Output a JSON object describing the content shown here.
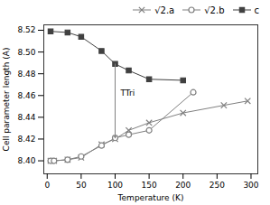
{
  "chart_data": {
    "type": "line",
    "xlabel": "Temperature (K)",
    "ylabel": "Cell parameter length (A)",
    "series": [
      {
        "name": "√2.a",
        "color": "#808080",
        "marker": "x",
        "x": [
          5,
          10,
          30,
          50,
          80,
          100,
          120,
          150,
          200,
          260,
          295
        ],
        "values": [
          8.4,
          8.4,
          8.401,
          8.403,
          8.415,
          8.42,
          8.428,
          8.435,
          8.444,
          8.451,
          8.455
        ]
      },
      {
        "name": "√2.b",
        "color": "#808080",
        "marker": "circle",
        "x": [
          5,
          10,
          30,
          50,
          80,
          100,
          120,
          150,
          215
        ],
        "values": [
          8.4,
          8.4,
          8.401,
          8.404,
          8.414,
          8.421,
          8.424,
          8.428,
          8.463
        ]
      },
      {
        "name": "c",
        "color": "#404040",
        "marker": "square",
        "x": [
          5,
          30,
          50,
          80,
          100,
          120,
          150,
          200
        ],
        "values": [
          8.519,
          8.518,
          8.514,
          8.501,
          8.489,
          8.483,
          8.475,
          8.474
        ]
      }
    ],
    "annotations": [
      {
        "type": "arrow",
        "x": 100,
        "y_start": 8.489,
        "y_end": 8.421,
        "color": "gray"
      },
      {
        "type": "text",
        "text": "TTri",
        "x": 108,
        "y": 8.462
      }
    ],
    "xlim": [
      -5,
      310
    ],
    "ylim": [
      8.388,
      8.525
    ],
    "xticks": [
      0,
      50,
      100,
      150,
      200,
      250,
      300
    ],
    "yticks": [
      {
        "value": 8.4,
        "label": "8.40"
      },
      {
        "value": 8.42,
        "label": "8.42"
      },
      {
        "value": 8.44,
        "label": "8.44"
      },
      {
        "value": 8.46,
        "label": "8.46"
      },
      {
        "value": 8.48,
        "label": "8.48"
      },
      {
        "value": 8.5,
        "label": "8.50"
      },
      {
        "value": 8.52,
        "label": "8.52"
      }
    ],
    "grid": false,
    "legend": "upper right"
  }
}
